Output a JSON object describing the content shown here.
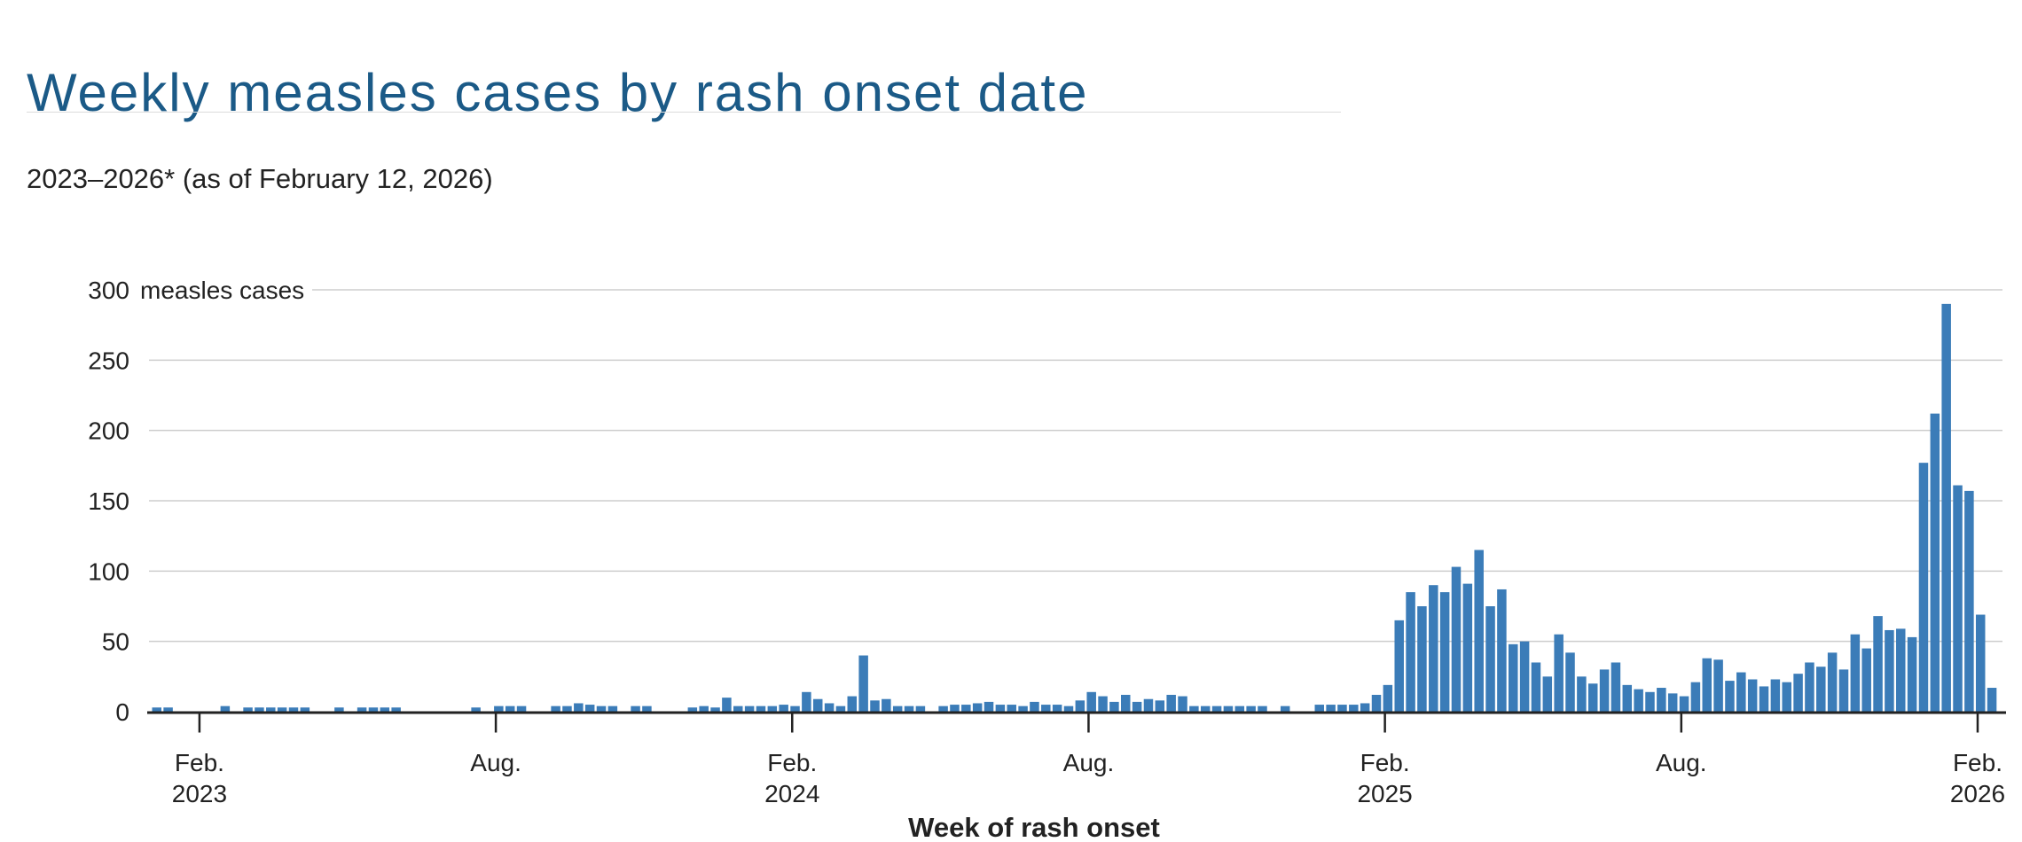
{
  "header": {
    "title": "Weekly measles cases by rash onset date",
    "subtitle": "2023–2026* (as of February 12, 2026)"
  },
  "chart_data": {
    "type": "bar",
    "title": "Weekly measles cases by rash onset date",
    "subtitle": "2023–2026* (as of February 12, 2026)",
    "xlabel": "Week of rash onset",
    "ylabel": "measles cases",
    "y_axis": {
      "ticks": [
        0,
        50,
        100,
        150,
        200,
        250,
        300
      ],
      "top_label_value": "300",
      "top_label_unit": "measles cases",
      "ylim": [
        0,
        300
      ],
      "grid": true
    },
    "x_axis": {
      "label": "Week of rash onset",
      "ticks": [
        {
          "month": "Feb.",
          "year": "2023",
          "week_index": 4
        },
        {
          "month": "Aug.",
          "year": "",
          "week_index": 30
        },
        {
          "month": "Feb.",
          "year": "2024",
          "week_index": 56
        },
        {
          "month": "Aug.",
          "year": "",
          "week_index": 82
        },
        {
          "month": "Feb.",
          "year": "2025",
          "week_index": 108
        },
        {
          "month": "Aug.",
          "year": "",
          "week_index": 134
        },
        {
          "month": "Feb.",
          "year": "2026",
          "week_index": 160
        }
      ]
    },
    "weeks": {
      "start_date": "2023-01-01",
      "interval_days": 7,
      "values": [
        3,
        3,
        0,
        0,
        0,
        0,
        4,
        0,
        3,
        3,
        3,
        3,
        3,
        3,
        0,
        0,
        3,
        0,
        3,
        3,
        3,
        3,
        0,
        0,
        0,
        0,
        0,
        0,
        3,
        0,
        4,
        4,
        4,
        0,
        0,
        4,
        4,
        6,
        5,
        4,
        4,
        0,
        4,
        4,
        0,
        0,
        0,
        3,
        4,
        3,
        10,
        4,
        4,
        4,
        4,
        5,
        4,
        14,
        9,
        6,
        4,
        11,
        40,
        8,
        9,
        4,
        4,
        4,
        0,
        4,
        5,
        5,
        6,
        7,
        5,
        5,
        4,
        7,
        5,
        5,
        4,
        8,
        14,
        11,
        7,
        12,
        7,
        9,
        8,
        12,
        11,
        4,
        4,
        4,
        4,
        4,
        4,
        4,
        0,
        4,
        0,
        0,
        5,
        5,
        5,
        5,
        6,
        12,
        19,
        65,
        85,
        75,
        90,
        85,
        103,
        91,
        115,
        75,
        87,
        48,
        50,
        35,
        25,
        55,
        42,
        25,
        20,
        30,
        35,
        19,
        16,
        14,
        17,
        13,
        11,
        21,
        38,
        37,
        22,
        28,
        23,
        18,
        23,
        21,
        27,
        35,
        32,
        42,
        30,
        55,
        45,
        68,
        58,
        59,
        53,
        177,
        212,
        290,
        161,
        157,
        69,
        17
      ]
    },
    "colors": {
      "bar": "#3b7cb8",
      "title": "#1b5a87",
      "axis_line": "#222222",
      "gridline": "#cdcdcd",
      "text": "#222222",
      "divider": "#dcdcdc"
    },
    "legend": null
  }
}
